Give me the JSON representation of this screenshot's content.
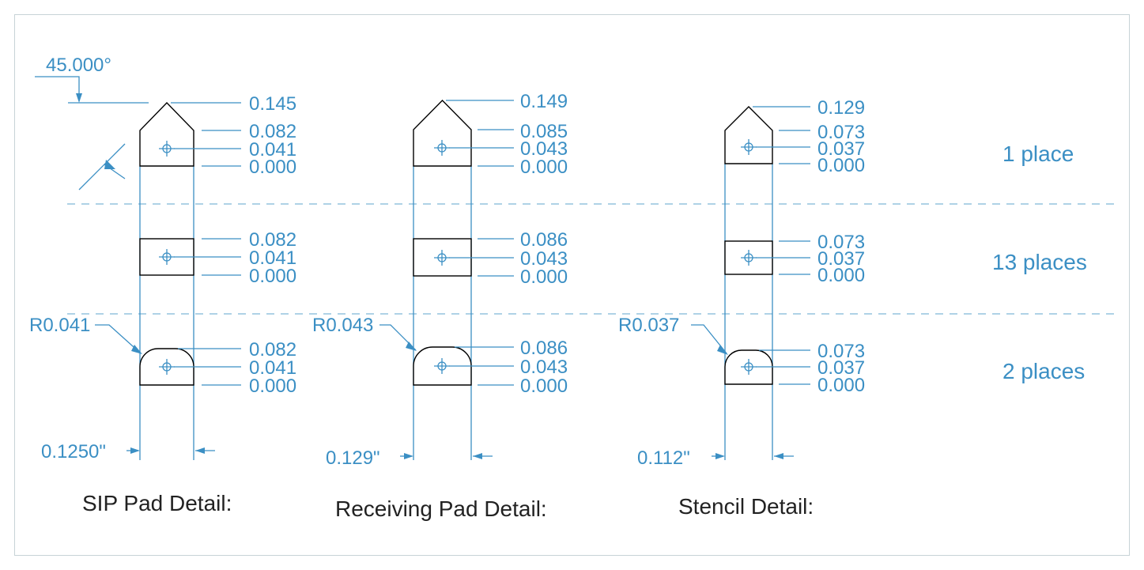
{
  "angle_label": "45.000°",
  "rows": [
    {
      "label": "1 place"
    },
    {
      "label": "13 places"
    },
    {
      "label": "2 places"
    }
  ],
  "details": [
    {
      "title": "SIP Pad Detail:",
      "width": "0.1250\"",
      "radius": "R0.041",
      "top": [
        "0.145",
        "0.082",
        "0.041",
        "0.000"
      ],
      "middle": [
        "0.082",
        "0.041",
        "0.000"
      ],
      "bottom": [
        "0.082",
        "0.041",
        "0.000"
      ]
    },
    {
      "title": "Receiving Pad Detail:",
      "width": "0.129\"",
      "radius": "R0.043",
      "top": [
        "0.149",
        "0.085",
        "0.043",
        "0.000"
      ],
      "middle": [
        "0.086",
        "0.043",
        "0.000"
      ],
      "bottom": [
        "0.086",
        "0.043",
        "0.000"
      ]
    },
    {
      "title": "Stencil Detail:",
      "width": "0.112\"",
      "radius": "R0.037",
      "top": [
        "0.129",
        "0.073",
        "0.037",
        "0.000"
      ],
      "middle": [
        "0.073",
        "0.037",
        "0.000"
      ],
      "bottom": [
        "0.073",
        "0.037",
        "0.000"
      ]
    }
  ]
}
